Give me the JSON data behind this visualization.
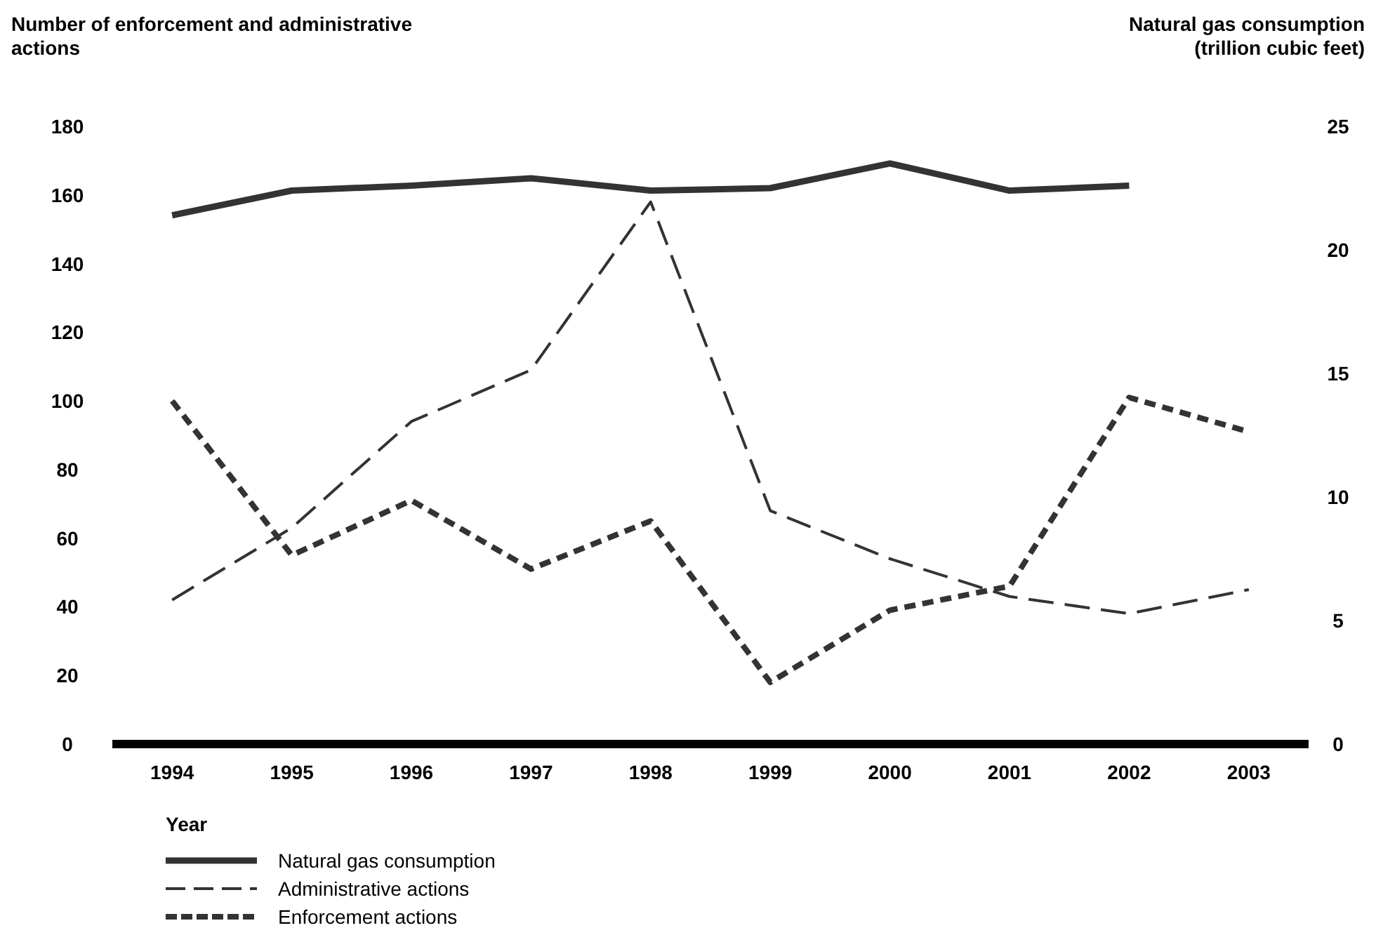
{
  "chart_data": {
    "type": "line",
    "ylabel": "Number of enforcement and administrative actions",
    "y2label": "Natural gas consumption (trillion cubic feet)",
    "xlabel": "Year",
    "categories": [
      "1994",
      "1995",
      "1996",
      "1997",
      "1998",
      "1999",
      "2000",
      "2001",
      "2002",
      "2003"
    ],
    "ylim": [
      0,
      180
    ],
    "yticks": [
      0,
      20,
      40,
      60,
      80,
      100,
      120,
      140,
      160,
      180
    ],
    "y2lim": [
      0,
      25
    ],
    "y2ticks": [
      0,
      5,
      10,
      15,
      20,
      25
    ],
    "legend": "bottom",
    "grid": false,
    "series": [
      {
        "name": "Natural gas consumption",
        "color": "#333333",
        "axis": "y2",
        "line_style": "solid",
        "values": [
          21.4,
          22.4,
          22.6,
          22.9,
          22.4,
          22.5,
          23.5,
          22.4,
          22.6,
          null
        ]
      },
      {
        "name": "Administrative actions",
        "color": "#333333",
        "line_style": "dashed",
        "values": [
          42,
          63,
          94,
          109,
          158,
          68,
          54,
          43,
          38,
          45
        ]
      },
      {
        "name": "Enforcement actions",
        "color": "#333333",
        "line_style": "dotted",
        "values": [
          100,
          55,
          71,
          51,
          65,
          18,
          39,
          46,
          101,
          91
        ]
      }
    ]
  }
}
